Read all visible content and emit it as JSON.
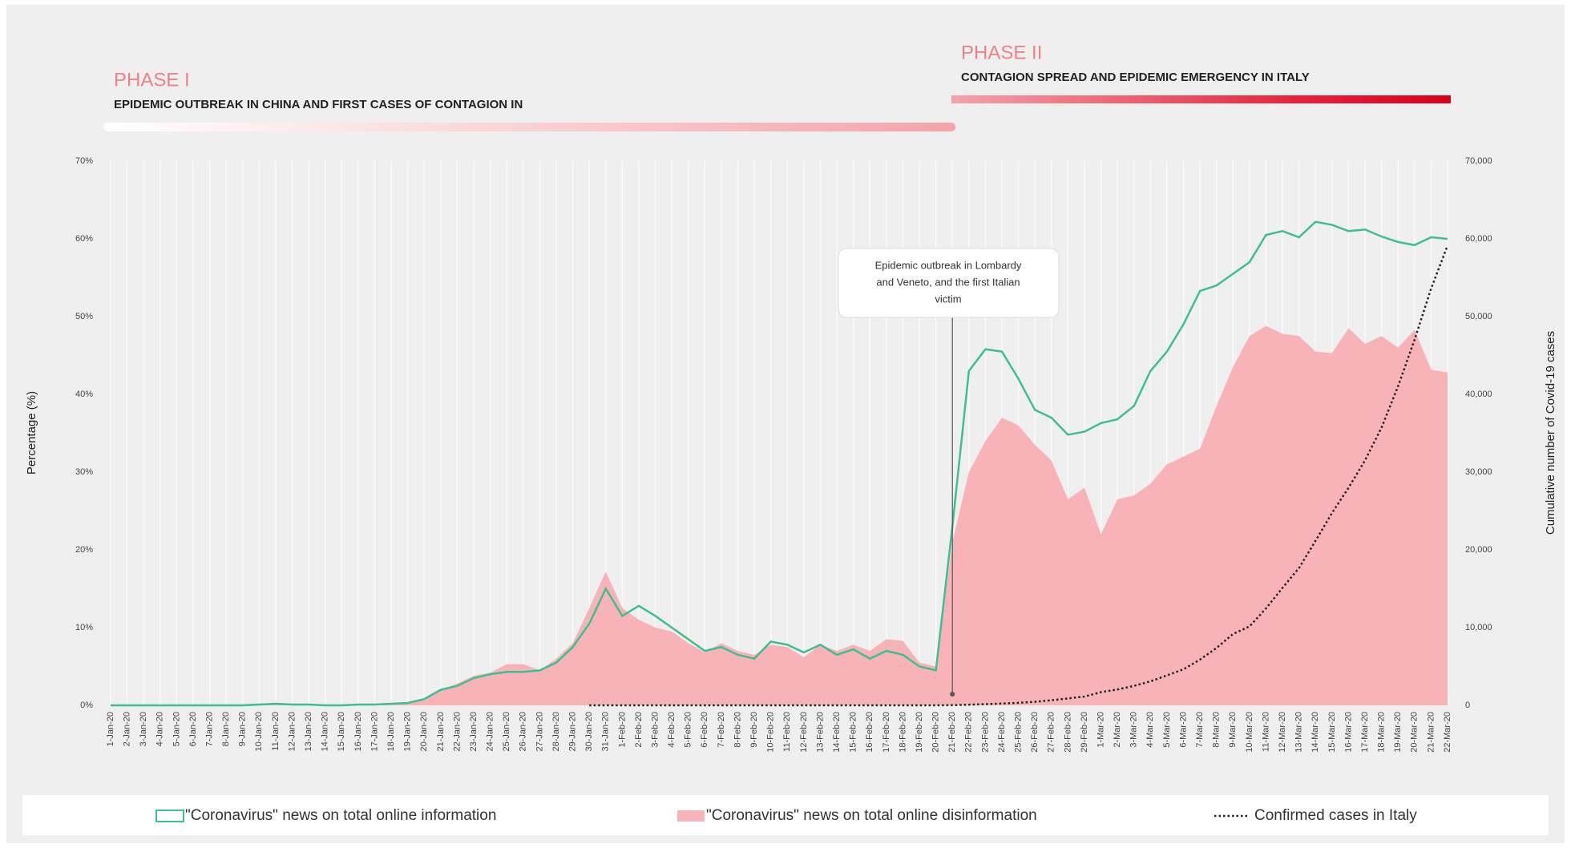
{
  "chart_data": {
    "type": "line-area",
    "phases": [
      {
        "label": "PHASE I",
        "subtitle": "EPIDEMIC OUTBREAK IN CHINA AND FIRST CASES OF CONTAGION IN"
      },
      {
        "label": "PHASE II",
        "subtitle": "CONTAGION SPREAD AND EPIDEMIC EMERGENCY IN ITALY"
      }
    ],
    "annotation": [
      "Epidemic outbreak in Lombardy",
      "and Veneto, and the first Italian",
      "victim"
    ],
    "ylabel": "Percentage (%)",
    "y2label": "Cumulative number of Covid-19 cases",
    "categories": [
      "1-Jan-20",
      "2-Jan-20",
      "3-Jan-20",
      "4-Jan-20",
      "5-Jan-20",
      "6-Jan-20",
      "7-Jan-20",
      "8-Jan-20",
      "9-Jan-20",
      "10-Jan-20",
      "11-Jan-20",
      "12-Jan-20",
      "13-Jan-20",
      "14-Jan-20",
      "15-Jan-20",
      "16-Jan-20",
      "17-Jan-20",
      "18-Jan-20",
      "19-Jan-20",
      "20-Jan-20",
      "21-Jan-20",
      "22-Jan-20",
      "23-Jan-20",
      "24-Jan-20",
      "25-Jan-20",
      "26-Jan-20",
      "27-Jan-20",
      "28-Jan-20",
      "29-Jan-20",
      "30-Jan-20",
      "31-Jan-20",
      "1-Feb-20",
      "2-Feb-20",
      "3-Feb-20",
      "4-Feb-20",
      "5-Feb-20",
      "6-Feb-20",
      "7-Feb-20",
      "8-Feb-20",
      "9-Feb-20",
      "10-Feb-20",
      "11-Feb-20",
      "12-Feb-20",
      "13-Feb-20",
      "14-Feb-20",
      "15-Feb-20",
      "16-Feb-20",
      "17-Feb-20",
      "18-Feb-20",
      "19-Feb-20",
      "20-Feb-20",
      "21-Feb-20",
      "22-Feb-20",
      "23-Feb-20",
      "24-Feb-20",
      "25-Feb-20",
      "26-Feb-20",
      "27-Feb-20",
      "28-Feb-20",
      "29-Feb-20",
      "1-Mar-20",
      "2-Mar-20",
      "3-Mar-20",
      "4-Mar-20",
      "5-Mar-20",
      "6-Mar-20",
      "7-Mar-20",
      "8-Mar-20",
      "9-Mar-20",
      "10-Mar-20",
      "11-Mar-20",
      "12-Mar-20",
      "13-Mar-20",
      "14-Mar-20",
      "15-Mar-20",
      "16-Mar-20",
      "17-Mar-20",
      "18-Mar-20",
      "19-Mar-20",
      "20-Mar-20",
      "21-Mar-20",
      "22-Mar-20"
    ],
    "series": [
      {
        "name": "\"Coronavirus\" news on total online information",
        "type": "line",
        "color": "#3dbf8f",
        "values": [
          0,
          0,
          0,
          0,
          0,
          0,
          0,
          0,
          0,
          0.1,
          0.2,
          0.1,
          0.1,
          0,
          0,
          0.1,
          0.1,
          0.2,
          0.3,
          0.8,
          2,
          2.5,
          3.5,
          4,
          4.3,
          4.3,
          4.5,
          5.5,
          7.5,
          10.5,
          15,
          11.5,
          12.8,
          11.5,
          10,
          8.5,
          7,
          7.5,
          6.5,
          6,
          8.2,
          7.8,
          6.8,
          7.8,
          6.5,
          7.2,
          6,
          7,
          6.5,
          5,
          4.5,
          23,
          43,
          45.8,
          45.5,
          42,
          38,
          37,
          34.8,
          35.2,
          36.3,
          36.8,
          38.5,
          43,
          45.5,
          49,
          53.3,
          54,
          55.5,
          57,
          60.5,
          61,
          60.2,
          62.2,
          61.8,
          61,
          61.2,
          60.3,
          59.6,
          59.2,
          60.2,
          60
        ]
      },
      {
        "name": "\"Coronavirus\" news on total online disinformation",
        "type": "area",
        "color": "#f7b3b8",
        "values": [
          0,
          0,
          0,
          0,
          0,
          0,
          0,
          0,
          0,
          0.1,
          0.2,
          0.1,
          0.1,
          0,
          0,
          0.1,
          0.1,
          0.2,
          0.3,
          0.8,
          2,
          2.8,
          3.8,
          4.2,
          5.3,
          5.3,
          4.5,
          6,
          8,
          12.5,
          17.2,
          12.5,
          11,
          10,
          9.5,
          8,
          6.8,
          8,
          7,
          6.5,
          7.8,
          7.5,
          6.2,
          7.8,
          7,
          7.8,
          7,
          8.5,
          8.3,
          5.5,
          5,
          21,
          30,
          34,
          37,
          36,
          33.5,
          31.5,
          26.5,
          28,
          22,
          26.5,
          27,
          28.5,
          31,
          32,
          33,
          38.5,
          43.5,
          47.5,
          48.8,
          47.8,
          47.5,
          45.5,
          45.3,
          48.5,
          46.5,
          47.5,
          46,
          48.3,
          43.2,
          42.8
        ]
      },
      {
        "name": "Confirmed cases in Italy",
        "type": "dotted",
        "color": "#222222",
        "axis": "y2",
        "values": [
          null,
          null,
          null,
          null,
          null,
          null,
          null,
          null,
          null,
          null,
          null,
          null,
          null,
          null,
          null,
          null,
          null,
          null,
          null,
          null,
          null,
          null,
          null,
          null,
          null,
          null,
          null,
          null,
          null,
          0,
          2,
          2,
          2,
          2,
          2,
          2,
          3,
          3,
          3,
          3,
          3,
          3,
          3,
          3,
          3,
          3,
          3,
          3,
          3,
          3,
          3,
          20,
          79,
          155,
          229,
          322,
          453,
          655,
          888,
          1128,
          1694,
          2036,
          2502,
          3089,
          3858,
          4636,
          5883,
          7375,
          9172,
          10149,
          12462,
          15113,
          17660,
          21157,
          24747,
          27980,
          31506,
          35713,
          41035,
          47021,
          53578,
          59138
        ]
      }
    ],
    "ylim": [
      0,
      70
    ],
    "yticks": [
      {
        "value": 0,
        "label": "0%"
      },
      {
        "value": 10,
        "label": "10%"
      },
      {
        "value": 20,
        "label": "20%"
      },
      {
        "value": 30,
        "label": "30%"
      },
      {
        "value": 40,
        "label": "40%"
      },
      {
        "value": 50,
        "label": "50%"
      },
      {
        "value": 60,
        "label": "60%"
      },
      {
        "value": 70,
        "label": "70%"
      }
    ],
    "y2lim": [
      0,
      70000
    ],
    "y2ticks": [
      0,
      {
        "value": 10000,
        "label": "10,000"
      },
      {
        "value": 20000,
        "label": "20,000"
      },
      {
        "value": 30000,
        "label": "30,000"
      },
      {
        "value": 40000,
        "label": "40,000"
      },
      {
        "value": 50000,
        "label": "50,000"
      },
      {
        "value": 60000,
        "label": "60,000"
      },
      {
        "value": 70000,
        "label": "70,000"
      }
    ]
  }
}
